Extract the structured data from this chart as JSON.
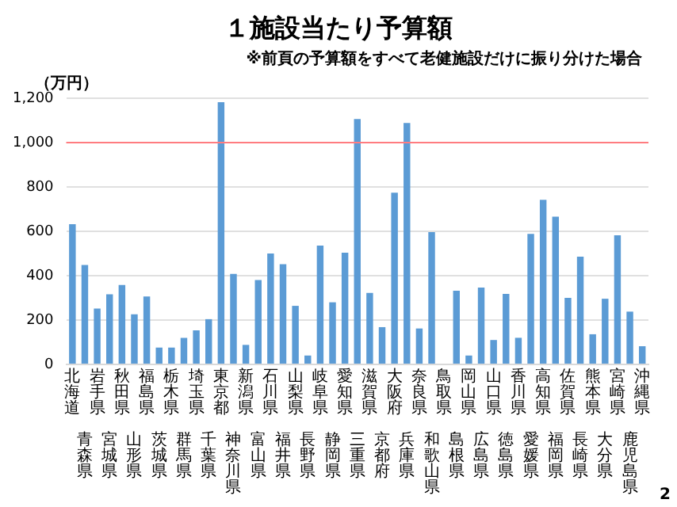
{
  "chart_data": {
    "type": "bar",
    "title": "１施設当たり予算額",
    "subtitle": "※前頁の予算額をすべて老健施設だけに振り分けた場合",
    "ylabel": "（万円）",
    "categories": [
      "北海道",
      "青森県",
      "岩手県",
      "宮城県",
      "秋田県",
      "山形県",
      "福島県",
      "茨城県",
      "栃木県",
      "群馬県",
      "埼玉県",
      "千葉県",
      "東京都",
      "神奈川県",
      "新潟県",
      "富山県",
      "石川県",
      "福井県",
      "山梨県",
      "長野県",
      "岐阜県",
      "静岡県",
      "愛知県",
      "三重県",
      "滋賀県",
      "京都府",
      "大阪府",
      "兵庫県",
      "奈良県",
      "和歌山県",
      "鳥取県",
      "島根県",
      "岡山県",
      "広島県",
      "山口県",
      "徳島県",
      "香川県",
      "愛媛県",
      "高知県",
      "福岡県",
      "佐賀県",
      "長崎県",
      "熊本県",
      "大分県",
      "宮崎県",
      "鹿児島県",
      "沖縄県"
    ],
    "values": [
      632,
      448,
      252,
      316,
      358,
      226,
      306,
      76,
      76,
      120,
      154,
      204,
      1182,
      408,
      88,
      380,
      500,
      452,
      264,
      40,
      536,
      280,
      504,
      1106,
      322,
      168,
      774,
      1088,
      162,
      596,
      0,
      332,
      40,
      346,
      110,
      318,
      120,
      588,
      742,
      666,
      300,
      486,
      136,
      296,
      582,
      238,
      82
    ],
    "color": "#5b9bd5",
    "ylim": [
      0,
      1200
    ],
    "yticks": [
      0,
      200,
      400,
      600,
      800,
      {
        "value": 1000,
        "label": "1,000"
      },
      {
        "value": 1200,
        "label": "1,200"
      }
    ],
    "grid": "y",
    "ref_lines": [
      {
        "axis": "y",
        "value": 1000,
        "color": "#ff7c80"
      }
    ],
    "annotations": [
      "2"
    ]
  }
}
